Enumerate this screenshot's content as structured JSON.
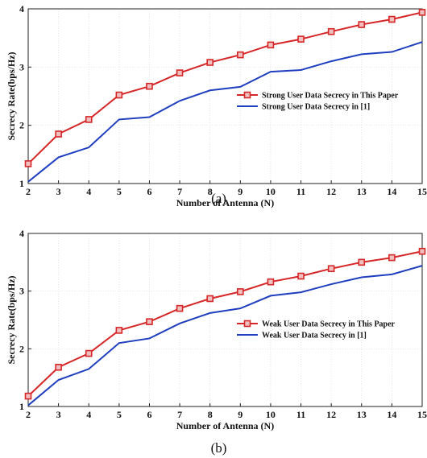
{
  "chart_data": [
    {
      "type": "line",
      "caption": "(a)",
      "xlabel": "Number of Antenna (N)",
      "ylabel": "Secrecy Rate(bps/Hz)",
      "x": [
        2,
        3,
        4,
        5,
        6,
        7,
        8,
        9,
        10,
        11,
        12,
        13,
        14,
        15
      ],
      "xlim": [
        2,
        15
      ],
      "ylim": [
        1,
        4
      ],
      "xticks": [
        "2",
        "3",
        "4",
        "5",
        "6",
        "7",
        "8",
        "9",
        "10",
        "11",
        "12",
        "13",
        "14",
        "15"
      ],
      "yticks": [
        "1",
        "2",
        "3",
        "4"
      ],
      "grid": true,
      "legend_position": "center-right",
      "series": [
        {
          "name": "Strong User Data Secrecy in This Paper",
          "color": "#d62728",
          "marker": "square",
          "values": [
            1.34,
            1.85,
            2.1,
            2.52,
            2.67,
            2.9,
            3.08,
            3.21,
            3.38,
            3.48,
            3.61,
            3.73,
            3.82,
            3.94
          ]
        },
        {
          "name": "Strong User Data Secrecy in [1]",
          "color": "#1f3fbf",
          "marker": "none",
          "values": [
            1.03,
            1.45,
            1.62,
            2.1,
            2.14,
            2.42,
            2.6,
            2.66,
            2.92,
            2.95,
            3.1,
            3.22,
            3.26,
            3.43
          ]
        }
      ]
    },
    {
      "type": "line",
      "caption": "(b)",
      "xlabel": "Number of Antenna (N)",
      "ylabel": "Secrecy Rate(bps/Hz)",
      "x": [
        2,
        3,
        4,
        5,
        6,
        7,
        8,
        9,
        10,
        11,
        12,
        13,
        14,
        15
      ],
      "xlim": [
        2,
        15
      ],
      "ylim": [
        1,
        4
      ],
      "xticks": [
        "2",
        "3",
        "4",
        "5",
        "6",
        "7",
        "8",
        "9",
        "10",
        "11",
        "12",
        "13",
        "14",
        "15"
      ],
      "yticks": [
        "1",
        "2",
        "3",
        "4"
      ],
      "grid": true,
      "legend_position": "center-right",
      "series": [
        {
          "name": "Weak User Data Secrecy in This Paper",
          "color": "#d62728",
          "marker": "square",
          "values": [
            1.18,
            1.68,
            1.92,
            2.32,
            2.47,
            2.7,
            2.87,
            2.99,
            3.16,
            3.26,
            3.39,
            3.5,
            3.58,
            3.69
          ]
        },
        {
          "name": "Weak User Data Secrecy in [1]",
          "color": "#1f3fbf",
          "marker": "none",
          "values": [
            1.02,
            1.46,
            1.65,
            2.1,
            2.18,
            2.44,
            2.62,
            2.7,
            2.92,
            2.98,
            3.12,
            3.24,
            3.29,
            3.44
          ]
        }
      ]
    }
  ]
}
